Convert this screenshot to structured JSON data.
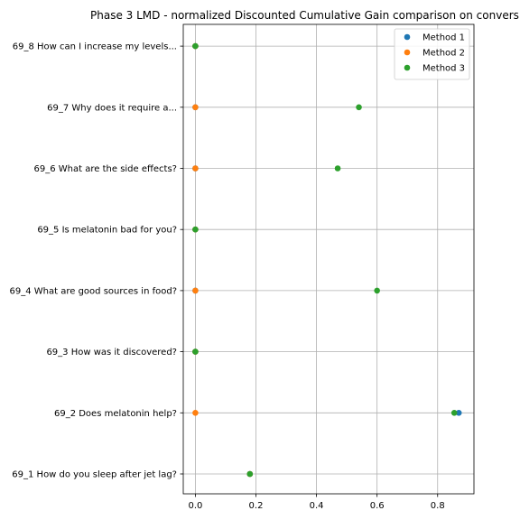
{
  "chart_data": {
    "type": "scatter",
    "title": "Phase 3 LMD - normalized Discounted Cumulative Gain comparison on convers",
    "xlabel": "",
    "ylabel": "",
    "xlim": [
      -0.04,
      0.92
    ],
    "xticks": [
      0.0,
      0.2,
      0.4,
      0.6,
      0.8
    ],
    "xtick_labels": [
      "0.0",
      "0.2",
      "0.4",
      "0.6",
      "0.8"
    ],
    "grid": true,
    "legend_position": "top-right",
    "categories": [
      "69_1 How do you sleep after jet lag?",
      "69_2 Does melatonin help?",
      "69_3 How was it discovered?",
      "69_4 What are good sources in food?",
      "69_5 Is melatonin bad for you?",
      "69_6 What are the side effects?",
      "69_7 Why does it require a...",
      "69_8 How can I increase my levels..."
    ],
    "series": [
      {
        "name": "Method 1",
        "color": "#1f77b4",
        "values": [
          0.18,
          0.87,
          0.0,
          0.0,
          0.0,
          0.0,
          0.0,
          0.0
        ]
      },
      {
        "name": "Method 2",
        "color": "#ff7f0e",
        "values": [
          0.18,
          0.0,
          0.0,
          0.0,
          0.0,
          0.0,
          0.0,
          0.0
        ]
      },
      {
        "name": "Method 3",
        "color": "#2ca02c",
        "values": [
          0.18,
          0.855,
          0.0,
          0.6,
          0.0,
          0.47,
          0.54,
          0.0
        ]
      }
    ]
  }
}
